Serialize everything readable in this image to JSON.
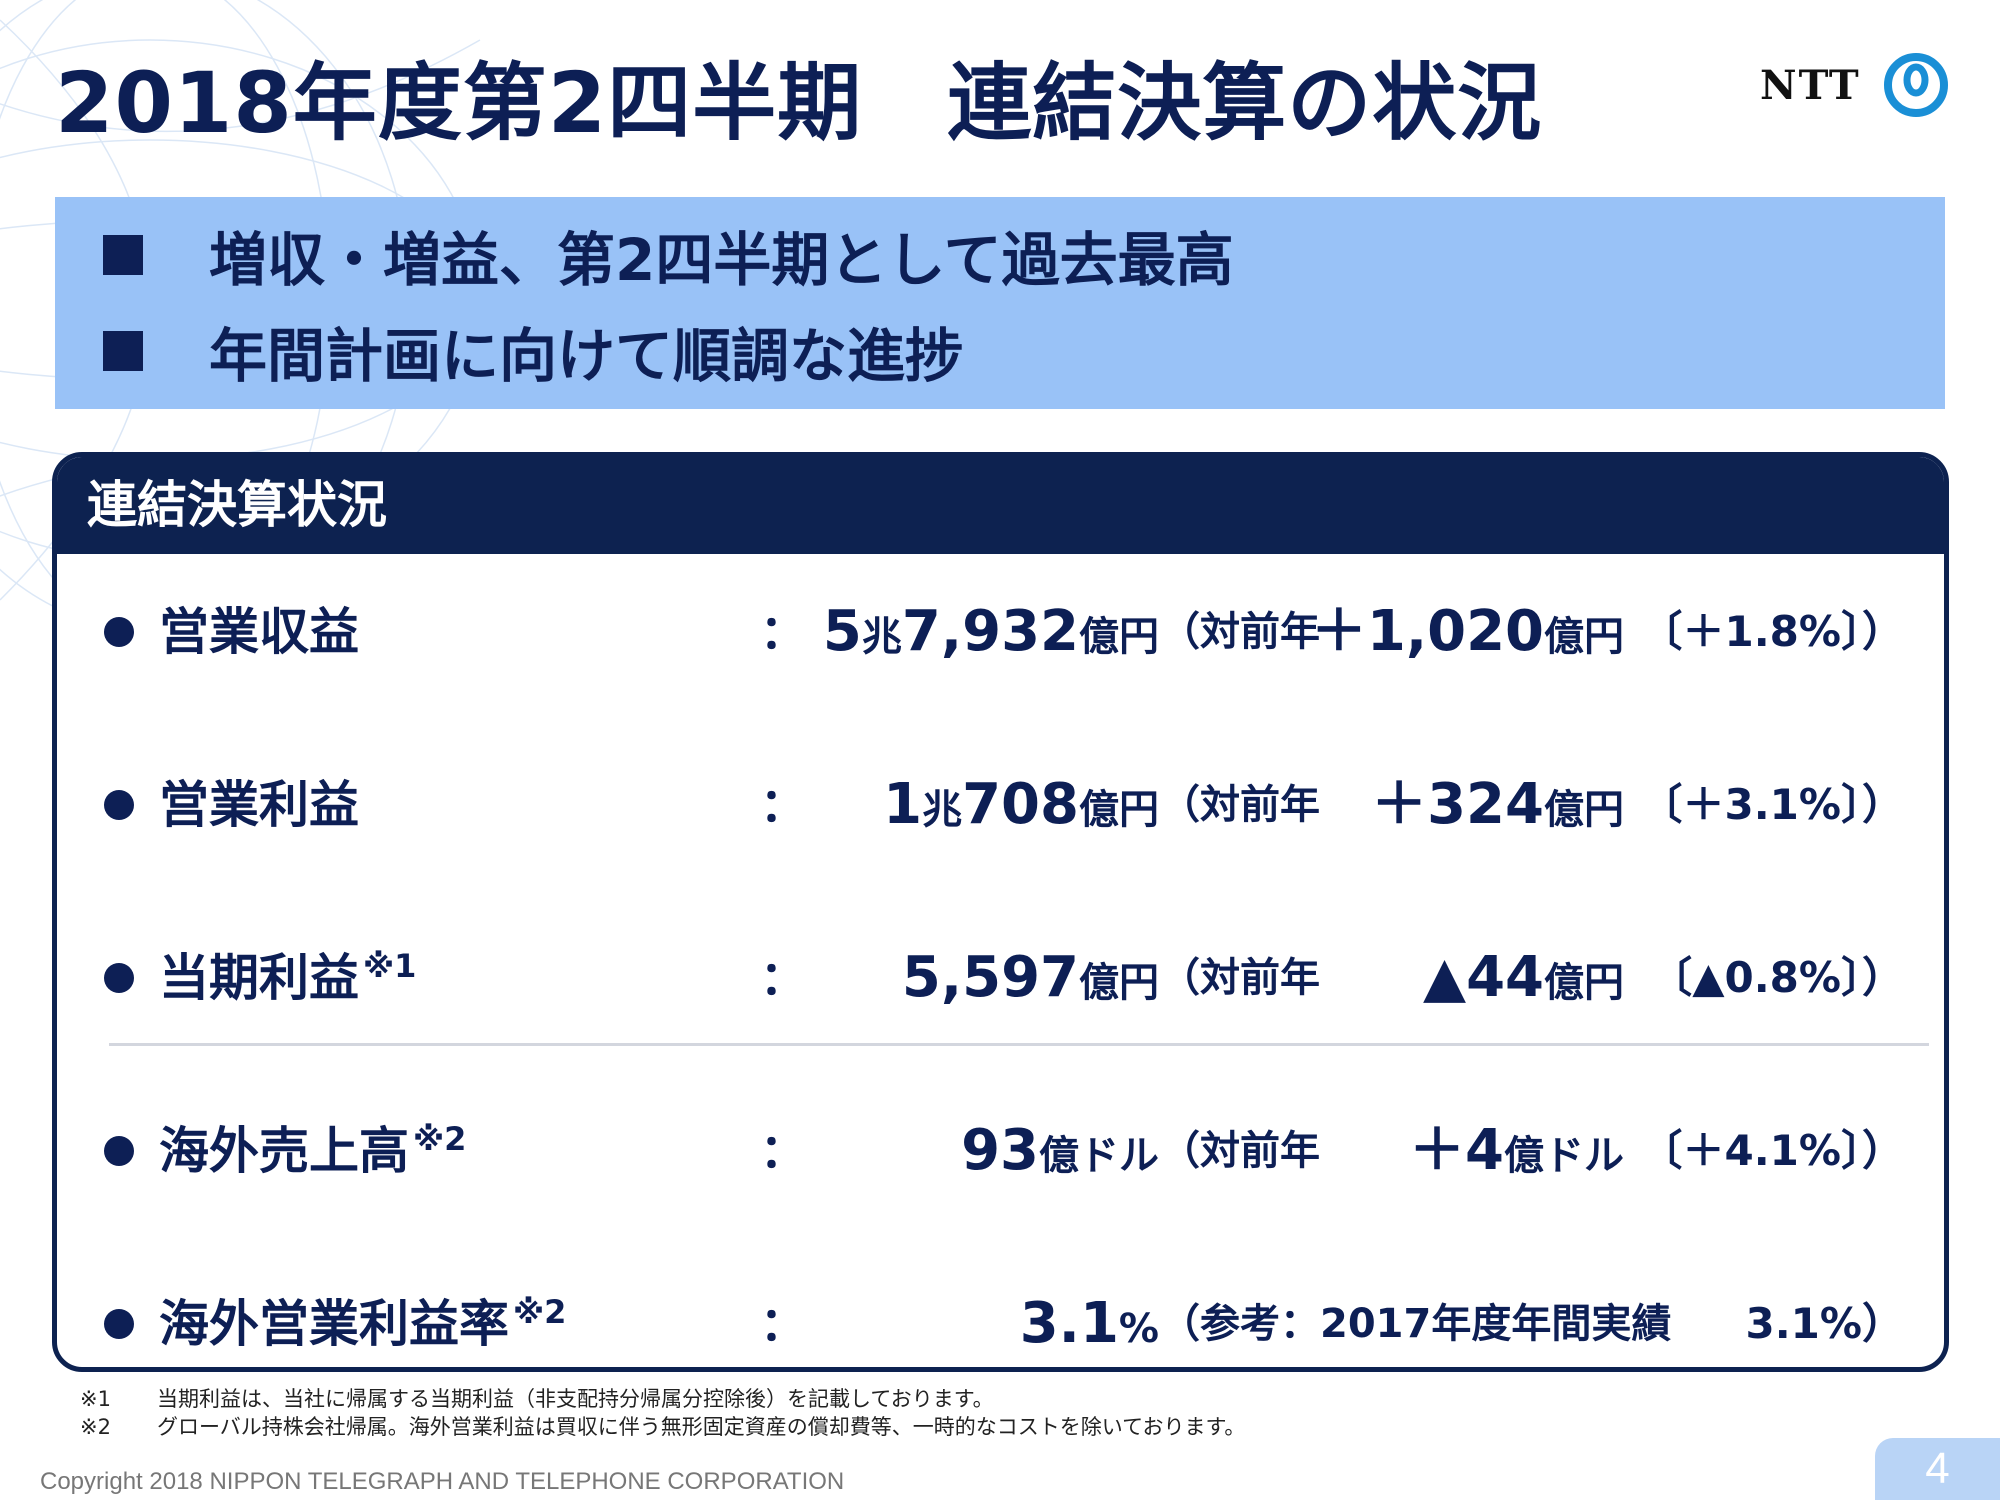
{
  "title": "2018年度第2四半期　連結決算の状況",
  "logo": {
    "text": "NTT",
    "icon": "ntt-logo-mark"
  },
  "highlights": [
    "増収・増益、第2四半期として過去最高",
    "年間計画に向けて順調な進捗"
  ],
  "panel": {
    "heading": "連結決算状況",
    "rows": [
      {
        "label": "営業収益",
        "note": "",
        "colon": "：",
        "main_num1": "5",
        "main_unit1": "兆",
        "main_num2": "7,932",
        "main_unit2": "億円",
        "vs": "（対前年",
        "chg_num": "＋1,020",
        "chg_unit": "億円",
        "pct": "〔＋1.8%〕）"
      },
      {
        "label": "営業利益",
        "note": "",
        "colon": "：",
        "main_num1": "1",
        "main_unit1": "兆",
        "main_num2": "708",
        "main_unit2": "億円",
        "vs": "（対前年",
        "chg_num": "＋324",
        "chg_unit": "億円",
        "pct": "〔＋3.1%〕）"
      },
      {
        "label": "当期利益",
        "note": "※1",
        "colon": "：",
        "main_num1": "",
        "main_unit1": "",
        "main_num2": "5,597",
        "main_unit2": "億円",
        "vs": "（対前年",
        "chg_num": "▲44",
        "chg_unit": "億円",
        "pct": "〔▲0.8%〕）"
      },
      {
        "label": "海外売上高",
        "note": "※2",
        "colon": "：",
        "main_num1": "",
        "main_unit1": "",
        "main_num2": "93",
        "main_unit2": "億ドル",
        "vs": "（対前年",
        "chg_num": "＋4",
        "chg_unit": "億ドル",
        "pct": "〔＋4.1%〕）"
      },
      {
        "label": "海外営業利益率",
        "note": "※2",
        "colon": "：",
        "main_num1": "",
        "main_unit1": "",
        "main_num2": "3.1",
        "main_unit2": "%",
        "ref": "（参考：2017年度年間実績",
        "ref_pct": "3.1%）"
      }
    ]
  },
  "footnotes": [
    {
      "mark": "※1",
      "text": "当期利益は、当社に帰属する当期利益（非支配持分帰属分控除後）を記載しております。"
    },
    {
      "mark": "※2",
      "text": "グローバル持株会社帰属。海外営業利益は買収に伴う無形固定資産の償却費等、一時的なコストを除いております。"
    }
  ],
  "copyright": "Copyright 2018 NIPPON TELEGRAPH AND TELEPHONE CORPORATION",
  "page_number": "4",
  "colors": {
    "navy": "#0d1f55",
    "banner": "#99c2f7",
    "page_box": "#b9d4f6"
  }
}
